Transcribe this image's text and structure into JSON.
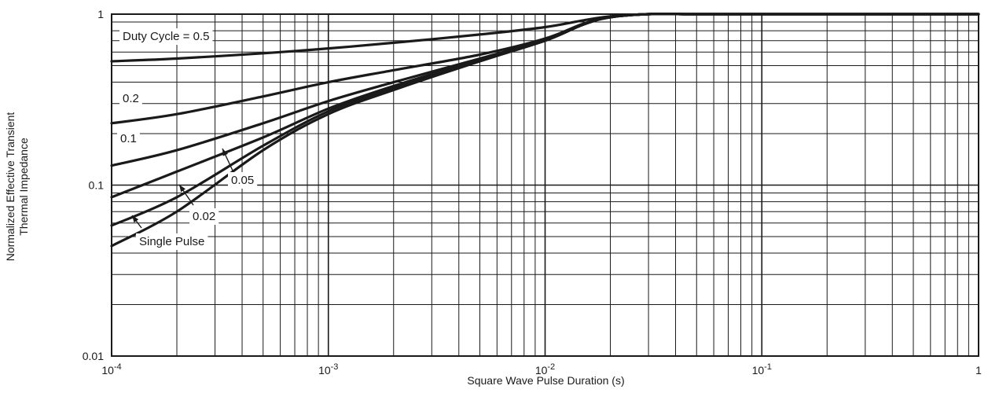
{
  "chart_data": {
    "type": "line",
    "xscale": "log",
    "yscale": "log",
    "xlim": [
      0.0001,
      1
    ],
    "ylim": [
      0.01,
      1
    ],
    "xlabel": "Square Wave Pulse Duration (s)",
    "ylabel_lines": [
      "Normalized Effective Transient",
      "Thermal Impedance"
    ],
    "grid": true,
    "x_ticks": [
      {
        "value": 0.0001,
        "base": "10",
        "exp": "-4"
      },
      {
        "value": 0.001,
        "base": "10",
        "exp": "-3"
      },
      {
        "value": 0.01,
        "base": "10",
        "exp": "-2"
      },
      {
        "value": 0.1,
        "base": "10",
        "exp": "-1"
      },
      {
        "value": 1,
        "base": "1",
        "exp": ""
      }
    ],
    "y_ticks": [
      {
        "value": 1,
        "label": "1"
      },
      {
        "value": 0.1,
        "label": "0.1"
      },
      {
        "value": 0.01,
        "label": "0.01"
      }
    ],
    "series": [
      {
        "name": "Duty Cycle = 0.5",
        "x": [
          0.0001,
          0.0002,
          0.0005,
          0.001,
          0.002,
          0.005,
          0.01,
          0.015,
          0.02,
          0.03,
          0.05,
          0.1,
          1
        ],
        "y": [
          0.53,
          0.55,
          0.59,
          0.63,
          0.68,
          0.76,
          0.84,
          0.92,
          0.97,
          1.0,
          1.0,
          1.0,
          1.0
        ]
      },
      {
        "name": "0.2",
        "x": [
          0.0001,
          0.0002,
          0.0005,
          0.001,
          0.002,
          0.005,
          0.01,
          0.015,
          0.02,
          0.03,
          0.05,
          0.1,
          1
        ],
        "y": [
          0.23,
          0.26,
          0.33,
          0.4,
          0.47,
          0.58,
          0.72,
          0.88,
          0.96,
          1.0,
          1.0,
          1.0,
          1.0
        ]
      },
      {
        "name": "0.1",
        "x": [
          0.0001,
          0.0002,
          0.0005,
          0.001,
          0.002,
          0.005,
          0.01,
          0.015,
          0.02,
          0.03,
          0.05,
          0.1,
          1
        ],
        "y": [
          0.13,
          0.16,
          0.23,
          0.31,
          0.4,
          0.55,
          0.71,
          0.87,
          0.96,
          1.0,
          1.0,
          1.0,
          1.0
        ]
      },
      {
        "name": "0.05",
        "x": [
          0.0001,
          0.0002,
          0.0005,
          0.001,
          0.002,
          0.005,
          0.01,
          0.015,
          0.02,
          0.03,
          0.05,
          0.1,
          1
        ],
        "y": [
          0.085,
          0.12,
          0.19,
          0.28,
          0.38,
          0.54,
          0.7,
          0.87,
          0.96,
          1.0,
          1.0,
          1.0,
          1.0
        ]
      },
      {
        "name": "0.02",
        "x": [
          0.0001,
          0.0002,
          0.0005,
          0.001,
          0.002,
          0.005,
          0.01,
          0.015,
          0.02,
          0.03,
          0.05,
          0.1,
          1
        ],
        "y": [
          0.058,
          0.085,
          0.17,
          0.27,
          0.37,
          0.54,
          0.7,
          0.87,
          0.96,
          1.0,
          1.0,
          1.0,
          1.0
        ]
      },
      {
        "name": "Single Pulse",
        "x": [
          0.0001,
          0.0002,
          0.0005,
          0.001,
          0.002,
          0.005,
          0.01,
          0.015,
          0.02,
          0.03,
          0.05,
          0.1,
          1
        ],
        "y": [
          0.044,
          0.07,
          0.16,
          0.26,
          0.36,
          0.53,
          0.7,
          0.87,
          0.96,
          1.0,
          1.0,
          1.0,
          1.0
        ]
      }
    ]
  }
}
